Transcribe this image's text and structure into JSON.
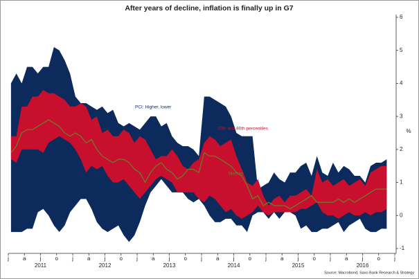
{
  "chart_data": {
    "type": "band",
    "title": "After years of decline, inflation is finally up in G7",
    "annotations": [
      "PCI: Higher, lower",
      "20th and 80th percentiles",
      "Median"
    ],
    "source": "Source: Macrobond, Saxo Bank Research & Strategy",
    "y_label": "%",
    "x": [
      "2011-01",
      "2011-02",
      "2011-03",
      "2011-04",
      "2011-05",
      "2011-06",
      "2011-07",
      "2011-08",
      "2011-09",
      "2011-10",
      "2011-11",
      "2011-12",
      "2012-01",
      "2012-02",
      "2012-03",
      "2012-04",
      "2012-05",
      "2012-06",
      "2012-07",
      "2012-08",
      "2012-09",
      "2012-10",
      "2012-11",
      "2012-12",
      "2013-01",
      "2013-02",
      "2013-03",
      "2013-04",
      "2013-05",
      "2013-06",
      "2013-07",
      "2013-08",
      "2013-09",
      "2013-10",
      "2013-11",
      "2013-12",
      "2014-01",
      "2014-02",
      "2014-03",
      "2014-04",
      "2014-05",
      "2014-06",
      "2014-07",
      "2014-08",
      "2014-09",
      "2014-10",
      "2014-11",
      "2014-12",
      "2015-01",
      "2015-02",
      "2015-03",
      "2015-04",
      "2015-05",
      "2015-06",
      "2015-07",
      "2015-08",
      "2015-09",
      "2015-10",
      "2015-11",
      "2015-12",
      "2016-01",
      "2016-02",
      "2016-03",
      "2016-04",
      "2016-05",
      "2016-06",
      "2016-07",
      "2016-08",
      "2016-09",
      "2016-10",
      "2016-11"
    ],
    "series": [
      {
        "color": "#0c2a5b",
        "values": [
          4.0,
          4.3,
          4.0,
          4.5,
          4.5,
          4.3,
          4.5,
          4.5,
          5.1,
          5.0,
          4.7,
          4.3,
          3.6,
          3.4,
          3.4,
          3.3,
          3.2,
          3.3,
          3.1,
          3.2,
          2.8,
          2.7,
          2.8,
          2.7,
          2.6,
          2.8,
          3.0,
          3.0,
          2.7,
          2.8,
          2.4,
          2.2,
          2.1,
          2.1,
          2.0,
          1.8,
          3.6,
          3.6,
          3.5,
          3.4,
          3.3,
          3.0,
          2.5,
          2.4,
          2.4,
          2.4,
          0.8,
          0.9,
          1.0,
          1.3,
          1.1,
          1.0,
          1.3,
          1.3,
          1.5,
          1.6,
          1.2,
          1.8,
          1.3,
          1.2,
          1.6,
          1.3,
          1.5,
          1.4,
          1.2,
          1.2,
          1.0,
          1.5,
          1.6,
          1.6,
          1.7
        ]
      },
      {
        "color": "#c8102e",
        "values": [
          2.4,
          2.4,
          3.3,
          3.3,
          3.6,
          3.6,
          3.8,
          3.7,
          3.7,
          3.6,
          3.5,
          3.3,
          3.3,
          3.4,
          3.3,
          2.9,
          3.0,
          2.5,
          2.6,
          2.4,
          2.4,
          2.6,
          2.5,
          2.2,
          2.4,
          2.3,
          2.0,
          1.7,
          1.8,
          1.8,
          2.0,
          1.8,
          1.5,
          1.4,
          1.6,
          1.7,
          2.2,
          2.4,
          2.3,
          2.1,
          2.2,
          2.3,
          1.8,
          1.4,
          1.0,
          0.9,
          1.1,
          0.6,
          0.3,
          0.5,
          0.6,
          0.4,
          0.6,
          0.6,
          0.7,
          0.8,
          0.6,
          1.4,
          1.0,
          1.1,
          0.9,
          1.0,
          1.1,
          0.9,
          1.0,
          1.1,
          0.9,
          1.3,
          1.4,
          1.5,
          1.5
        ]
      },
      {
        "color": "#6b7a2a",
        "values": [
          1.9,
          2.1,
          2.5,
          2.6,
          2.6,
          2.7,
          2.8,
          2.9,
          2.8,
          2.7,
          2.5,
          2.4,
          2.5,
          2.4,
          2.2,
          2.3,
          2.0,
          1.8,
          1.7,
          1.6,
          1.7,
          1.7,
          1.6,
          1.4,
          1.3,
          1.0,
          1.3,
          1.5,
          1.6,
          1.4,
          1.3,
          1.1,
          1.2,
          1.4,
          1.4,
          1.3,
          1.9,
          1.8,
          1.8,
          1.7,
          1.6,
          1.5,
          1.3,
          1.2,
          0.9,
          0.5,
          0.6,
          0.3,
          0.4,
          0.3,
          0.3,
          0.3,
          0.2,
          0.3,
          0.4,
          0.5,
          0.6,
          0.4,
          0.4,
          0.4,
          0.4,
          0.5,
          0.4,
          0.5,
          0.4,
          0.5,
          0.6,
          0.7,
          0.8,
          0.8,
          0.8
        ]
      },
      {
        "color": "#c8102e",
        "values": [
          1.7,
          1.6,
          2.0,
          2.0,
          2.0,
          2.0,
          1.9,
          2.2,
          2.3,
          2.4,
          2.3,
          2.2,
          2.0,
          1.7,
          1.3,
          1.5,
          1.4,
          1.5,
          1.2,
          1.0,
          1.0,
          1.1,
          0.9,
          0.7,
          0.5,
          0.7,
          0.9,
          1.1,
          1.2,
          1.1,
          1.0,
          0.7,
          0.7,
          0.7,
          0.7,
          0.5,
          0.4,
          0.6,
          0.5,
          0.3,
          0.1,
          0.2,
          0.0,
          -0.1,
          0.0,
          0.1,
          0.3,
          0.1,
          0.0,
          0.1,
          0.1,
          0.1,
          0.1,
          0.1,
          0.2,
          0.2,
          0.3,
          0.4,
          0.1,
          0.0,
          0.0,
          -0.1,
          0.0,
          0.1,
          0.0,
          0.0,
          0.1,
          0.0,
          0.1,
          0.1,
          0.2
        ]
      },
      {
        "color": "#0c2a5b",
        "values": [
          -0.5,
          -0.5,
          -0.5,
          -0.4,
          -0.4,
          0.1,
          0.2,
          0.0,
          -0.3,
          -0.5,
          -0.3,
          0.1,
          0.3,
          0.5,
          0.5,
          0.2,
          -0.2,
          -0.4,
          -0.5,
          -0.4,
          -0.3,
          -0.6,
          -0.8,
          -0.6,
          -0.2,
          0.3,
          0.7,
          0.9,
          1.1,
          0.9,
          0.7,
          0.7,
          0.7,
          0.5,
          0.4,
          0.5,
          0.3,
          0.0,
          -0.2,
          -0.2,
          -0.1,
          -0.1,
          -0.3,
          -0.3,
          -0.5,
          0.0,
          0.1,
          0.1,
          -0.1,
          0.1,
          -0.1,
          0.1,
          0.1,
          0.0,
          -0.4,
          -0.3,
          -0.5,
          -0.5,
          -0.4,
          -0.4,
          -0.3,
          -0.2,
          -0.5,
          -0.3,
          -0.2,
          -0.1,
          -0.4,
          -0.5,
          -0.5,
          -0.4,
          -0.4
        ]
      }
    ],
    "ylim": [
      -1,
      6
    ],
    "yticks": [
      -1,
      0,
      1,
      2,
      3,
      4,
      5,
      6
    ],
    "xlim": [
      "2011-01",
      "2017-01"
    ],
    "xticks": [
      {
        "value": "2011-01",
        "label": "j"
      },
      {
        "value": "2011-04",
        "label": "a"
      },
      {
        "value": "2011-07",
        "label": "j"
      },
      {
        "value": "2011-10",
        "label": "o"
      },
      {
        "value": "2012-01",
        "label": "j"
      },
      {
        "value": "2012-04",
        "label": "a"
      },
      {
        "value": "2012-07",
        "label": "j"
      },
      {
        "value": "2012-10",
        "label": "o"
      },
      {
        "value": "2013-01",
        "label": "j"
      },
      {
        "value": "2013-04",
        "label": "a"
      },
      {
        "value": "2013-07",
        "label": "j"
      },
      {
        "value": "2013-10",
        "label": "o"
      },
      {
        "value": "2014-01",
        "label": "j"
      },
      {
        "value": "2014-04",
        "label": "a"
      },
      {
        "value": "2014-07",
        "label": "j"
      },
      {
        "value": "2014-10",
        "label": "o"
      },
      {
        "value": "2015-01",
        "label": "j"
      },
      {
        "value": "2015-04",
        "label": "a"
      },
      {
        "value": "2015-07",
        "label": "j"
      },
      {
        "value": "2015-10",
        "label": "o"
      },
      {
        "value": "2016-01",
        "label": "j"
      },
      {
        "value": "2016-04",
        "label": "a"
      },
      {
        "value": "2016-07",
        "label": "j"
      },
      {
        "value": "2016-10",
        "label": "o"
      },
      {
        "value": "2017-01",
        "label": "j"
      }
    ],
    "years": [
      "2011",
      "2012",
      "2013",
      "2014",
      "2015",
      "2016"
    ]
  }
}
